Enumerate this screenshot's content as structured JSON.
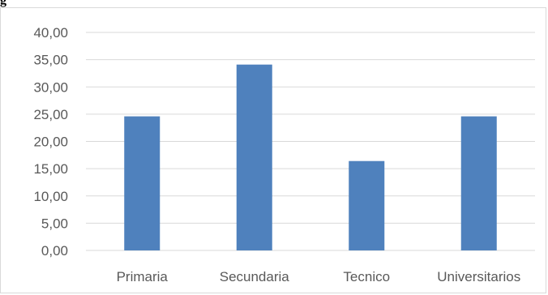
{
  "top_fragment": "g",
  "chart_data": {
    "type": "bar",
    "categories": [
      "Primaria",
      "Secundaria",
      "Tecnico",
      "Universitarios"
    ],
    "values": [
      24.6,
      34.1,
      16.4,
      24.6
    ],
    "title": "",
    "xlabel": "",
    "ylabel": "",
    "ylim": [
      0,
      40
    ],
    "yticks": [
      "0,00",
      "5,00",
      "10,00",
      "15,00",
      "20,00",
      "25,00",
      "30,00",
      "35,00",
      "40,00"
    ],
    "grid": true,
    "bar_color": "#4f81bd",
    "grid_color": "#d9d9d9"
  }
}
